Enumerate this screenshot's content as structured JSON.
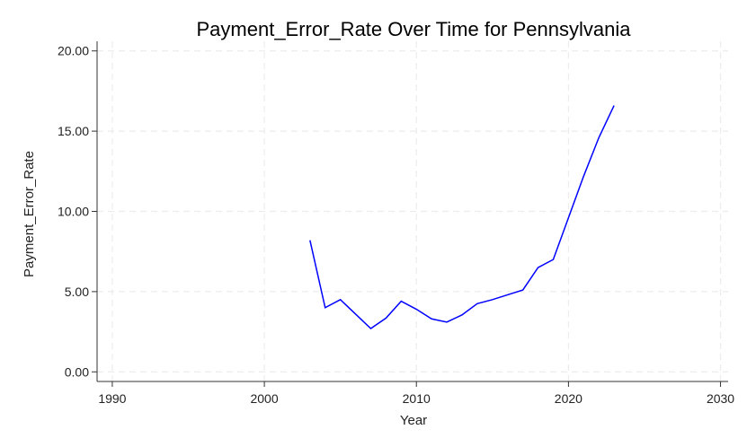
{
  "chart_data": {
    "type": "line",
    "title": "Payment_Error_Rate Over Time for Pennsylvania",
    "xlabel": "Year",
    "ylabel": "Payment_Error_Rate",
    "xlim": [
      1989,
      2030.5
    ],
    "ylim": [
      -0.6,
      20.6
    ],
    "xticks": [
      1990,
      2000,
      2010,
      2020,
      2030
    ],
    "yticks": [
      0,
      5,
      10,
      15,
      20
    ],
    "ytick_labels": [
      "0.00",
      "5.00",
      "10.00",
      "15.00",
      "20.00"
    ],
    "grid": true,
    "series": [
      {
        "name": "Payment_Error_Rate",
        "color": "#0000ff",
        "x": [
          2003,
          2004,
          2005,
          2006,
          2007,
          2008,
          2009,
          2010,
          2011,
          2012,
          2013,
          2014,
          2015,
          2016,
          2017,
          2018,
          2019,
          2020,
          2021,
          2022,
          2023
        ],
        "y": [
          8.2,
          4.0,
          4.5,
          3.6,
          2.7,
          3.35,
          4.4,
          3.9,
          3.3,
          3.1,
          3.55,
          4.25,
          4.5,
          4.8,
          5.1,
          6.5,
          7.0,
          9.6,
          12.2,
          14.6,
          16.6
        ]
      }
    ]
  }
}
